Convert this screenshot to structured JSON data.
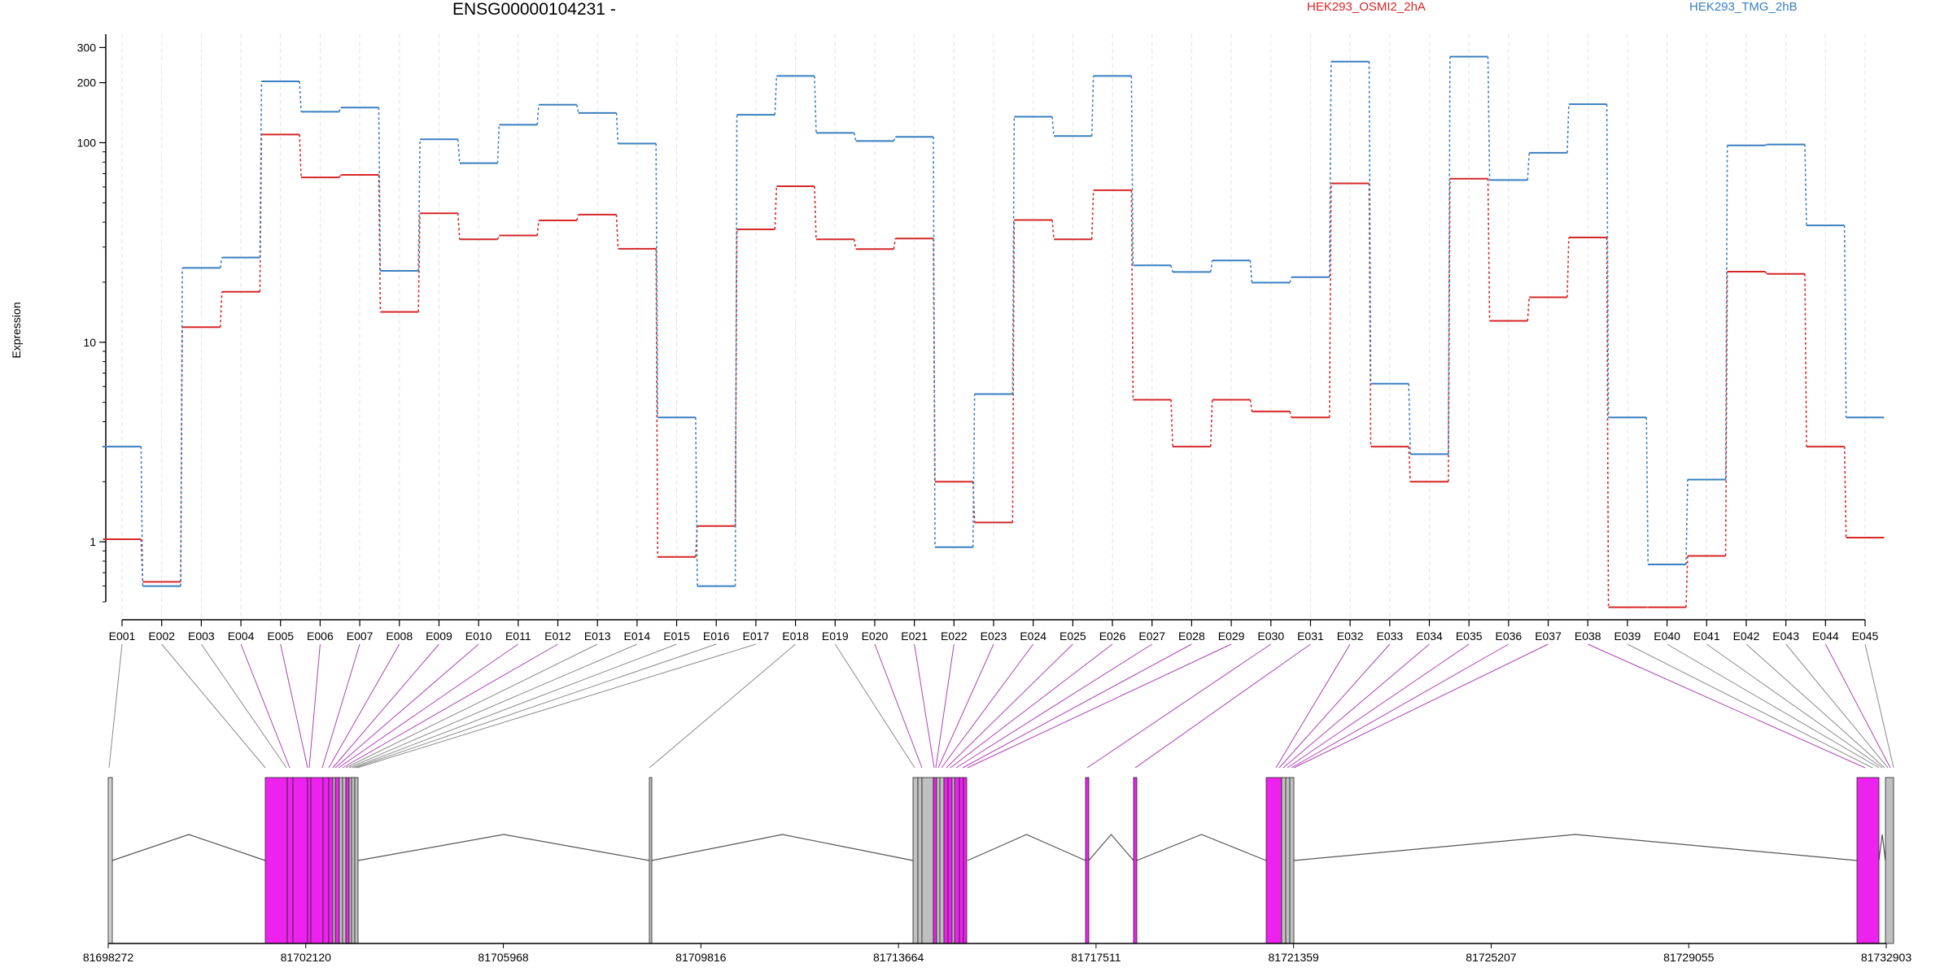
{
  "chart_data": {
    "type": "line",
    "title": "ENSG00000104231 -",
    "xlabel": "",
    "ylabel": "Expression",
    "y_scale": "log",
    "ylim": [
      0.5,
      350
    ],
    "y_ticks": [
      1,
      10,
      100,
      200,
      300
    ],
    "grid": "vertical dashed at each exon",
    "legend": "top",
    "categories": [
      "E001",
      "E002",
      "E003",
      "E004",
      "E005",
      "E006",
      "E007",
      "E008",
      "E009",
      "E010",
      "E011",
      "E012",
      "E013",
      "E014",
      "E015",
      "E016",
      "E017",
      "E018",
      "E019",
      "E020",
      "E021",
      "E022",
      "E023",
      "E024",
      "E025",
      "E026",
      "E027",
      "E028",
      "E029",
      "E030",
      "E031",
      "E032",
      "E033",
      "E034",
      "E035",
      "E036",
      "E037",
      "E038",
      "E039",
      "E040",
      "E041",
      "E042",
      "E043",
      "E044",
      "E045"
    ],
    "series": [
      {
        "name": "HEK293_OSMI2_2hA",
        "color": "#d62728",
        "values": [
          1.03,
          0.63,
          11.9,
          17.9,
          110,
          67,
          69,
          14.2,
          44.3,
          32.8,
          34.3,
          40.8,
          43.6,
          29.4,
          0.84,
          1.2,
          36.8,
          60.5,
          32.8,
          29.3,
          33.1,
          2.0,
          1.25,
          41,
          32.8,
          57.8,
          5.15,
          3.0,
          5.15,
          4.5,
          4.2,
          62.5,
          3.0,
          2.0,
          66,
          12.8,
          16.8,
          33.5,
          0.47,
          0.47,
          0.85,
          22.6,
          22.0,
          3.0,
          1.05
        ]
      },
      {
        "name": "HEK293_TMG_2hB",
        "color": "#3a7fc1",
        "values": [
          3.0,
          0.6,
          23.6,
          26.6,
          203,
          143,
          150,
          22.8,
          104,
          79,
          123,
          155,
          141,
          99,
          4.2,
          0.6,
          138,
          216,
          112,
          102,
          107,
          0.94,
          5.5,
          135,
          108,
          216,
          24.3,
          22.5,
          25.7,
          19.9,
          21.2,
          255,
          6.2,
          2.75,
          270,
          65,
          89,
          156,
          4.2,
          0.77,
          2.05,
          97,
          98,
          38.5,
          4.2
        ]
      }
    ],
    "gene_model": {
      "coord_ticks": [
        "81698272",
        "81702120",
        "81705968",
        "81709816",
        "81713664",
        "81717511",
        "81721359",
        "81725207",
        "81729055",
        "81732903"
      ]
    }
  }
}
